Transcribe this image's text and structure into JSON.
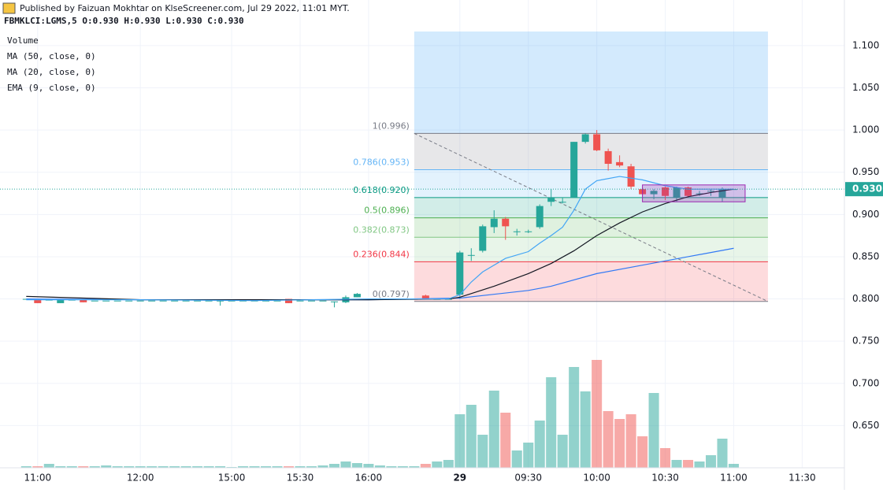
{
  "header": {
    "publisher": "Published by Faizuan Mokhtar on KlseScreener.com, Jul 29 2022, 11:01 MYT.",
    "symbol_line": "FBMKLCI:LGMS,5  O:0.930 H:0.930 L:0.930 C:0.930"
  },
  "chart_data": {
    "type": "candlestick",
    "xlim": [
      -2.3,
      71.7
    ],
    "ylim": [
      0.6,
      1.154
    ],
    "yticks": [
      {
        "value": 0.65,
        "label": "0.650"
      },
      {
        "value": 0.7,
        "label": "0.700"
      },
      {
        "value": 0.75,
        "label": "0.750"
      },
      {
        "value": 0.8,
        "label": "0.800"
      },
      {
        "value": 0.85,
        "label": "0.850"
      },
      {
        "value": 0.9,
        "label": "0.900"
      },
      {
        "value": 0.95,
        "label": "0.950"
      },
      {
        "value": 1.0,
        "label": "1.000"
      },
      {
        "value": 1.05,
        "label": "1.050"
      },
      {
        "value": 1.1,
        "label": "1.100"
      }
    ],
    "xticks": [
      {
        "value": 1,
        "label": "11:00"
      },
      {
        "value": 10,
        "label": "12:00"
      },
      {
        "value": 18,
        "label": "15:00"
      },
      {
        "value": 24,
        "label": "15:30"
      },
      {
        "value": 30,
        "label": "16:00"
      },
      {
        "value": 38,
        "label": "29"
      },
      {
        "value": 44,
        "label": "09:30"
      },
      {
        "value": 50,
        "label": "10:00"
      },
      {
        "value": 56,
        "label": "10:30"
      },
      {
        "value": 62,
        "label": "11:00"
      },
      {
        "value": 68,
        "label": "11:30"
      }
    ],
    "grid": true,
    "up_color": "#26a69a",
    "down_color": "#ef5350",
    "x": [
      0,
      1,
      2,
      3,
      4,
      5,
      6,
      7,
      8,
      9,
      10,
      11,
      12,
      13,
      14,
      15,
      16,
      17,
      18,
      19,
      20,
      21,
      22,
      23,
      24,
      25,
      26,
      27,
      28,
      29,
      30,
      31,
      32,
      33,
      34,
      35,
      36,
      37,
      38,
      39,
      40,
      41,
      42,
      43,
      44,
      45,
      46,
      47,
      48,
      49,
      50,
      51,
      52,
      53,
      54,
      55,
      56,
      57,
      58,
      59,
      60,
      61,
      62
    ],
    "open": [
      0.8,
      0.8,
      0.799,
      0.795,
      0.799,
      0.8,
      0.798,
      0.798,
      0.798,
      0.798,
      0.798,
      0.798,
      0.798,
      0.798,
      0.798,
      0.798,
      0.798,
      0.798,
      0.798,
      0.798,
      0.798,
      0.798,
      0.798,
      0.8,
      0.798,
      0.798,
      0.798,
      0.797,
      0.796,
      0.802,
      0.8,
      0.8,
      0.8,
      0.8,
      0.8,
      0.804,
      0.8,
      0.8,
      0.805,
      0.852,
      0.857,
      0.885,
      0.895,
      0.88,
      0.88,
      0.885,
      0.915,
      0.915,
      0.92,
      0.986,
      0.995,
      0.975,
      0.962,
      0.957,
      0.93,
      0.924,
      0.932,
      0.92,
      0.932,
      0.925,
      0.928,
      0.92,
      0.93
    ],
    "high": [
      0.8,
      0.8,
      0.799,
      0.8,
      0.799,
      0.8,
      0.798,
      0.798,
      0.798,
      0.798,
      0.798,
      0.798,
      0.798,
      0.798,
      0.798,
      0.798,
      0.798,
      0.798,
      0.798,
      0.798,
      0.798,
      0.798,
      0.798,
      0.8,
      0.798,
      0.798,
      0.798,
      0.797,
      0.804,
      0.807,
      0.8,
      0.8,
      0.8,
      0.8,
      0.8,
      0.805,
      0.8,
      0.8,
      0.857,
      0.86,
      0.888,
      0.905,
      0.897,
      0.883,
      0.882,
      0.912,
      0.93,
      0.92,
      0.986,
      0.996,
      1.0,
      0.978,
      0.97,
      0.96,
      0.932,
      0.93,
      0.933,
      0.933,
      0.933,
      0.928,
      0.93,
      0.932,
      0.93
    ],
    "low": [
      0.8,
      0.795,
      0.799,
      0.795,
      0.799,
      0.796,
      0.798,
      0.798,
      0.798,
      0.798,
      0.798,
      0.798,
      0.798,
      0.798,
      0.798,
      0.798,
      0.798,
      0.792,
      0.798,
      0.798,
      0.798,
      0.798,
      0.798,
      0.795,
      0.798,
      0.798,
      0.798,
      0.79,
      0.795,
      0.802,
      0.8,
      0.8,
      0.8,
      0.8,
      0.8,
      0.8,
      0.8,
      0.8,
      0.8,
      0.845,
      0.855,
      0.878,
      0.87,
      0.875,
      0.878,
      0.883,
      0.91,
      0.913,
      0.92,
      0.984,
      0.975,
      0.952,
      0.956,
      0.93,
      0.922,
      0.918,
      0.917,
      0.915,
      0.92,
      0.922,
      0.922,
      0.915,
      0.93
    ],
    "close": [
      0.8,
      0.795,
      0.799,
      0.8,
      0.799,
      0.796,
      0.798,
      0.798,
      0.798,
      0.798,
      0.798,
      0.798,
      0.798,
      0.798,
      0.798,
      0.798,
      0.798,
      0.798,
      0.798,
      0.798,
      0.798,
      0.798,
      0.798,
      0.795,
      0.798,
      0.798,
      0.798,
      0.797,
      0.802,
      0.806,
      0.8,
      0.8,
      0.8,
      0.8,
      0.8,
      0.8,
      0.8,
      0.8,
      0.855,
      0.852,
      0.886,
      0.895,
      0.886,
      0.88,
      0.88,
      0.91,
      0.92,
      0.915,
      0.986,
      0.995,
      0.976,
      0.96,
      0.958,
      0.933,
      0.924,
      0.928,
      0.922,
      0.932,
      0.922,
      0.925,
      0.928,
      0.93,
      0.93
    ],
    "volume": {
      "name": "Volume",
      "values": [
        2,
        2,
        5,
        2,
        2,
        2,
        2,
        3,
        2,
        2,
        2,
        2,
        2,
        2,
        2,
        2,
        2,
        2,
        1,
        2,
        2,
        2,
        2,
        2,
        2,
        2,
        3,
        5,
        8,
        6,
        5,
        3,
        2,
        2,
        2,
        5,
        8,
        10,
        68,
        80,
        42,
        98,
        70,
        22,
        32,
        60,
        115,
        42,
        128,
        97,
        137,
        72,
        62,
        68,
        40,
        95,
        25,
        10,
        10,
        8,
        16,
        37,
        5
      ]
    },
    "indicators": [
      {
        "name": "MA (50, close, 0)",
        "color": "#3179f5",
        "x": [
          0,
          10,
          20,
          30,
          38,
          44,
          46,
          50,
          54,
          58,
          62
        ],
        "values": [
          0.8,
          0.799,
          0.799,
          0.799,
          0.801,
          0.81,
          0.815,
          0.83,
          0.84,
          0.85,
          0.86
        ]
      },
      {
        "name": "MA (20, close, 0)",
        "color": "#131722",
        "x": [
          0,
          5,
          10,
          20,
          30,
          37,
          38,
          41,
          44,
          46,
          48,
          50,
          52,
          54,
          56,
          58,
          60,
          62
        ],
        "values": [
          0.803,
          0.801,
          0.799,
          0.799,
          0.799,
          0.8,
          0.802,
          0.815,
          0.83,
          0.842,
          0.857,
          0.875,
          0.89,
          0.903,
          0.913,
          0.921,
          0.926,
          0.93
        ]
      },
      {
        "name": "EMA (9, close, 0)",
        "color": "#42a5f5",
        "x": [
          0,
          10,
          20,
          30,
          37,
          38,
          39,
          40,
          42,
          44,
          45,
          46,
          47,
          48,
          49,
          50,
          52,
          54,
          56,
          58,
          60,
          62
        ],
        "values": [
          0.799,
          0.799,
          0.798,
          0.8,
          0.8,
          0.805,
          0.82,
          0.832,
          0.848,
          0.856,
          0.866,
          0.875,
          0.885,
          0.905,
          0.93,
          0.94,
          0.945,
          0.941,
          0.934,
          0.93,
          0.93,
          0.93
        ]
      }
    ],
    "fib": {
      "x": [
        34,
        65
      ],
      "levels": [
        {
          "value": 0.996,
          "label": "1(0.996)",
          "color": "#787b86"
        },
        {
          "value": 0.953,
          "label": "0.786(0.953)",
          "color": "#64b5f6"
        },
        {
          "value": 0.92,
          "label": "0.618(0.920)",
          "color": "#089981"
        },
        {
          "value": 0.896,
          "label": "0.5(0.896)",
          "color": "#4caf50"
        },
        {
          "value": 0.873,
          "label": "0.382(0.873)",
          "color": "#81c784"
        },
        {
          "value": 0.844,
          "label": "0.236(0.844)",
          "color": "#f23645"
        },
        {
          "value": 0.797,
          "label": "0(0.797)",
          "color": "#787b86"
        }
      ]
    },
    "rectangle": {
      "x": [
        54,
        63
      ],
      "y": [
        0.915,
        0.935
      ],
      "color": "#9c27b0"
    },
    "last_price": {
      "value": 0.93,
      "label": "0.930",
      "color": "#26a69a"
    }
  }
}
